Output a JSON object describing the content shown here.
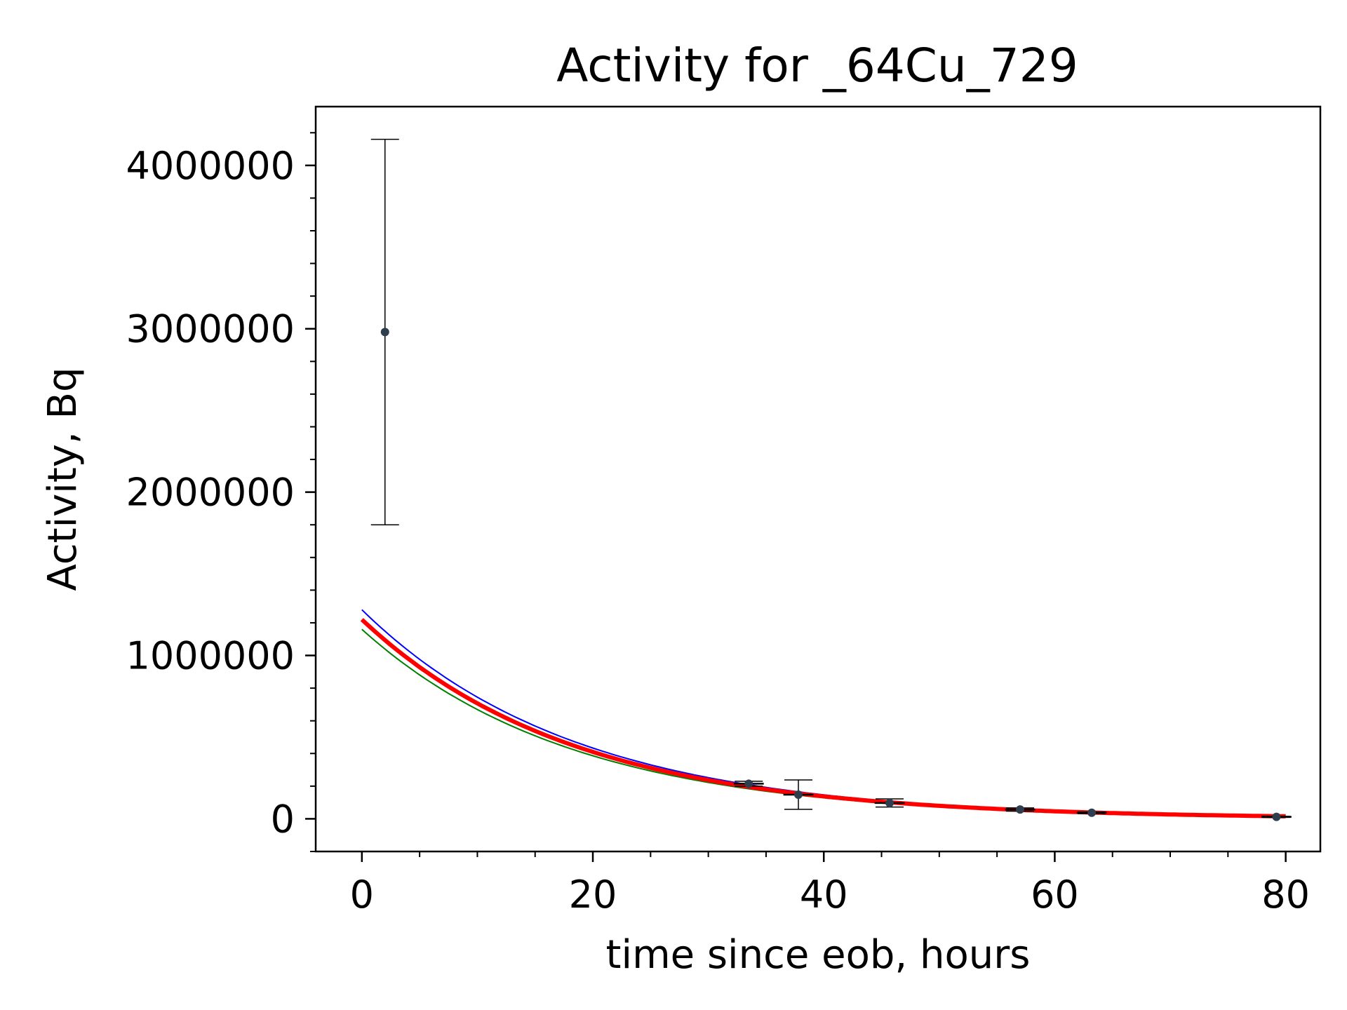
{
  "chart_data": {
    "type": "scatter",
    "title": "Activity for _64Cu_729",
    "xlabel": "time since eob, hours",
    "ylabel": "Activity, Bq",
    "xlim": [
      -4,
      83
    ],
    "ylim": [
      -200000,
      4360000
    ],
    "x_ticks": [
      0,
      20,
      40,
      60,
      80
    ],
    "x_tick_labels": [
      "0",
      "20",
      "40",
      "60",
      "80"
    ],
    "y_ticks": [
      0,
      1000000,
      2000000,
      3000000,
      4000000
    ],
    "y_tick_labels": [
      "0",
      "1000000",
      "2000000",
      "3000000",
      "4000000"
    ],
    "x_minor_step": 5,
    "y_minor_step": 200000,
    "grid": false,
    "legend": "none",
    "measurements": [
      {
        "x": 2.0,
        "y": 2980000,
        "y_err": [
          1180000,
          1180000
        ],
        "x_err": [
          0.2,
          0.2
        ]
      },
      {
        "x": 33.5,
        "y": 215000,
        "y_err": [
          15000,
          15000
        ],
        "x_err": [
          1.3,
          1.3
        ]
      },
      {
        "x": 37.8,
        "y": 148000,
        "y_err": [
          90000,
          90000
        ],
        "x_err": [
          1.3,
          1.3
        ]
      },
      {
        "x": 45.7,
        "y": 97000,
        "y_err": [
          25000,
          25000
        ],
        "x_err": [
          1.3,
          1.3
        ]
      },
      {
        "x": 57.0,
        "y": 57000,
        "y_err": [
          10000,
          10000
        ],
        "x_err": [
          1.3,
          1.3
        ]
      },
      {
        "x": 63.2,
        "y": 37000,
        "y_err": [
          5000,
          5000
        ],
        "x_err": [
          1.3,
          1.3
        ]
      },
      {
        "x": 79.2,
        "y": 12000,
        "y_err": [
          3000,
          3000
        ],
        "x_err": [
          1.3,
          1.3
        ]
      }
    ],
    "fit_curves": [
      {
        "role": "upper",
        "color": "#0000ff",
        "width": 2,
        "x_range": [
          0,
          80
        ],
        "A0": 1280000,
        "half_life_h": 12.8
      },
      {
        "role": "lower",
        "color": "#008000",
        "width": 2,
        "x_range": [
          0,
          80
        ],
        "A0": 1160000,
        "half_life_h": 12.6
      },
      {
        "role": "best",
        "color": "#ff0000",
        "width": 6,
        "x_range": [
          0,
          80
        ],
        "A0": 1220000,
        "half_life_h": 12.7
      }
    ],
    "marker_color": "#2f3e4e",
    "errorbar_color": "#000000"
  }
}
